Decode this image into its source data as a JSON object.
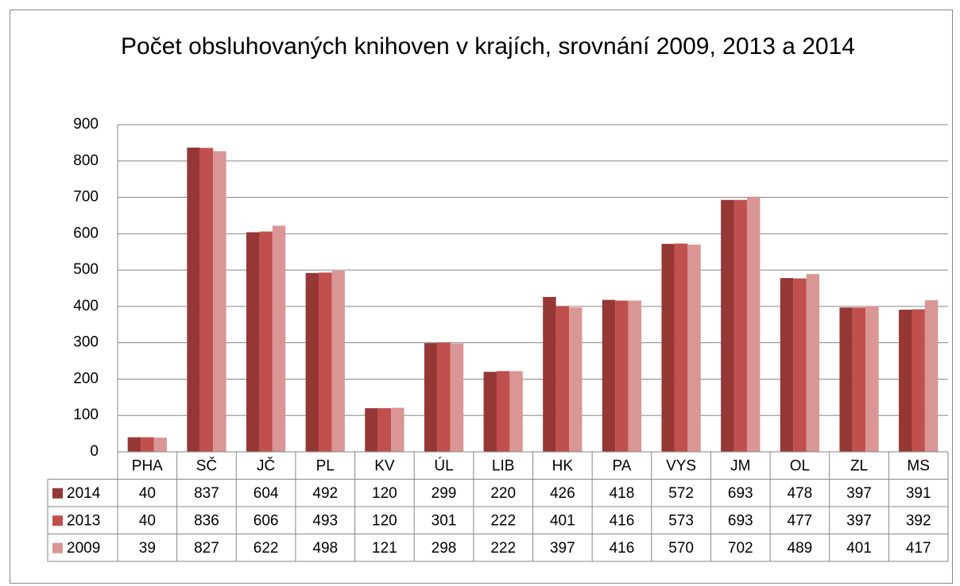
{
  "chart_data": {
    "type": "bar",
    "title": "Počet obsluhovaných knihoven v krajích, srovnání 2009, 2013 a 2014",
    "categories": [
      "PHA",
      "SČ",
      "JČ",
      "PL",
      "KV",
      "ÚL",
      "LIB",
      "HK",
      "PA",
      "VYS",
      "JM",
      "OL",
      "ZL",
      "MS"
    ],
    "series": [
      {
        "name": "2014",
        "color": "#953735",
        "values": [
          40,
          837,
          604,
          492,
          120,
          299,
          220,
          426,
          418,
          572,
          693,
          478,
          397,
          391
        ]
      },
      {
        "name": "2013",
        "color": "#c0504d",
        "values": [
          40,
          836,
          606,
          493,
          120,
          301,
          222,
          401,
          416,
          573,
          693,
          477,
          397,
          392
        ]
      },
      {
        "name": "2009",
        "color": "#d99694",
        "values": [
          39,
          827,
          622,
          498,
          121,
          298,
          222,
          397,
          416,
          570,
          702,
          489,
          401,
          417
        ]
      }
    ],
    "ylim": [
      0,
      900
    ],
    "yticks": [
      0,
      100,
      200,
      300,
      400,
      500,
      600,
      700,
      800,
      900
    ],
    "grid": true
  }
}
